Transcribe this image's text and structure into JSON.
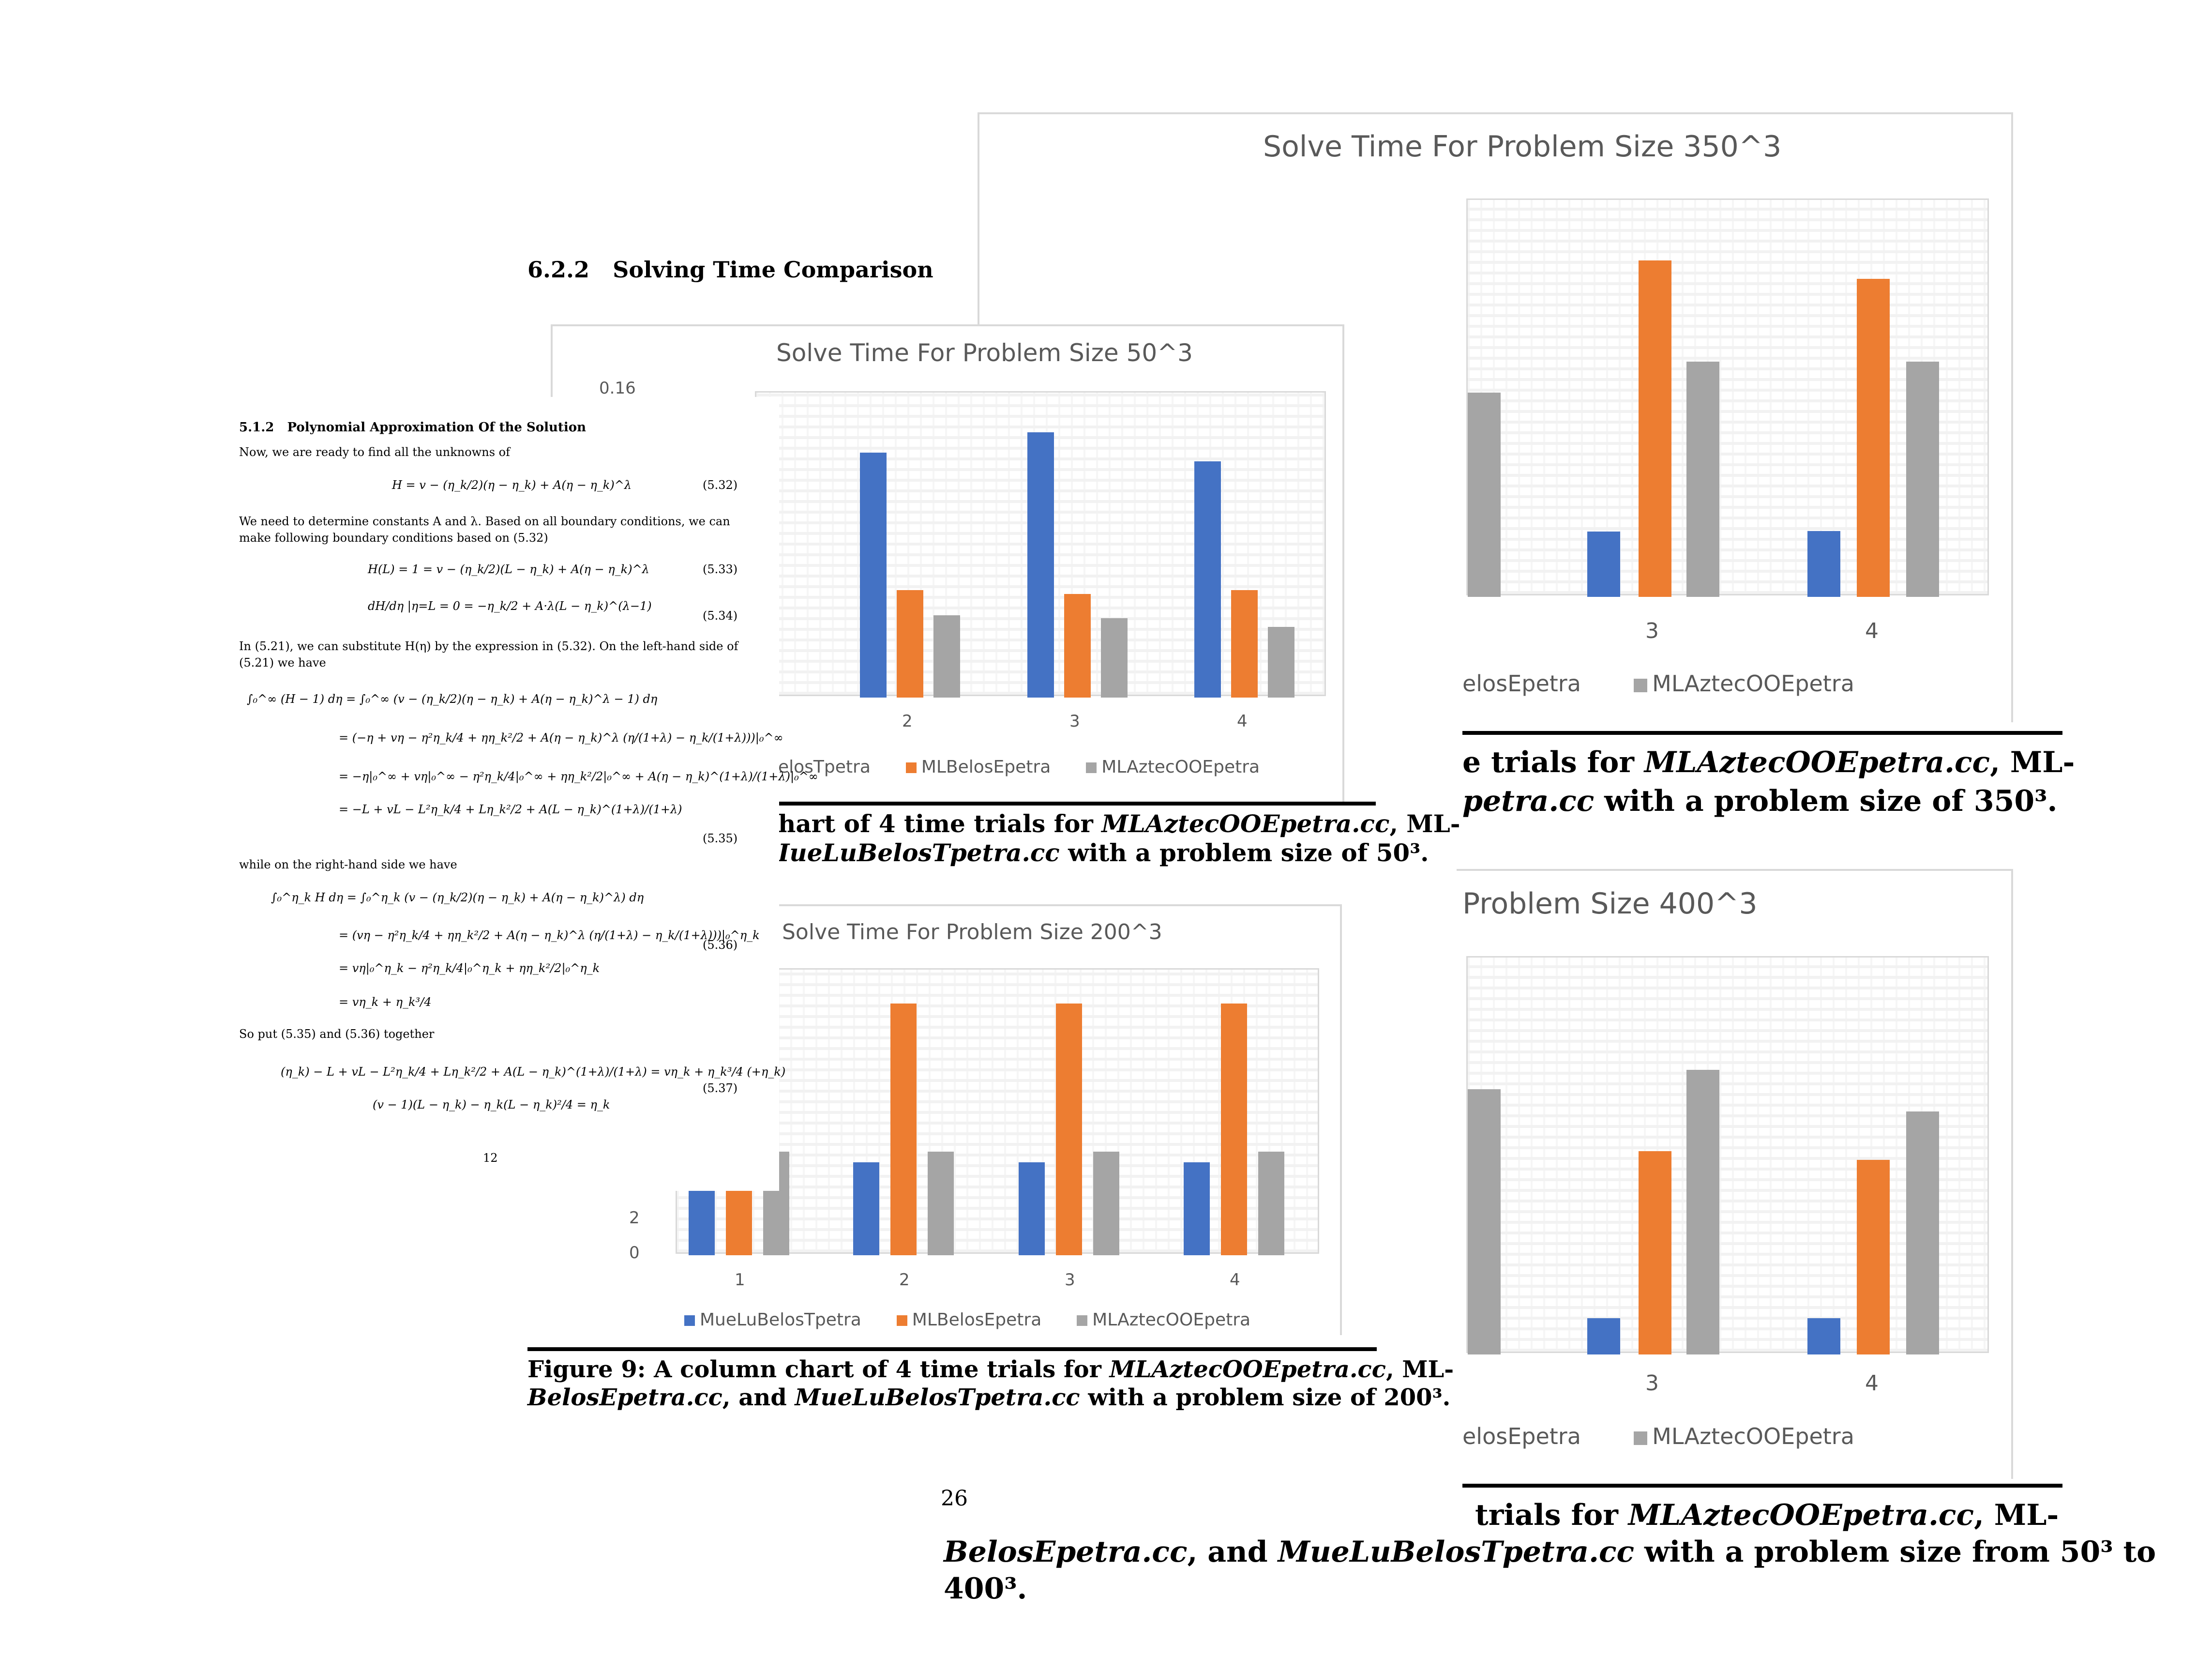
{
  "section_heading": {
    "number": "6.2.2",
    "title": "Solving Time Comparison"
  },
  "chart_50": {
    "title": "Solve Time For Problem Size 50^3",
    "partial_tick": "0.16",
    "categories": [
      "2",
      "3",
      "4"
    ],
    "legend": [
      "elosTpetra",
      "MLBelosEpetra",
      "MLAztecOOEpetra"
    ]
  },
  "caption_50": {
    "line1_pre": "hart of 4 time trials for ",
    "line1_em": "MLAztecOOEpetra.cc",
    "line1_post": ", ML-",
    "line2_em": "IueLuBelosTpetra.cc",
    "line2_post": " with a problem size of 50³."
  },
  "chart_200": {
    "title": "Solve Time For Problem Size 200^3",
    "y_ticks": [
      "2",
      "0"
    ],
    "categories": [
      "1",
      "2",
      "3",
      "4"
    ],
    "legend": [
      "MueLuBelosTpetra",
      "MLBelosEpetra",
      "MLAztecOOEpetra"
    ]
  },
  "caption_200": {
    "fig": "Figure 9:",
    "line1_pre": " A column chart of 4 time trials for ",
    "line1_em": "MLAztecOOEpetra.cc",
    "line1_post": ", ML-",
    "line2_em1": "BelosEpetra.cc",
    "line2_mid": ", and ",
    "line2_em2": "MueLuBelosTpetra.cc",
    "line2_post": " with a problem size of 200³."
  },
  "page_number_26": "26",
  "chart_350": {
    "title": "Solve Time For Problem Size 350^3",
    "categories": [
      "3",
      "4"
    ],
    "legend": [
      "elosEpetra",
      "MLAztecOOEpetra"
    ]
  },
  "caption_350": {
    "line1_pre": "e trials for ",
    "line1_em": "MLAztecOOEpetra.cc",
    "line1_post": ", ML-",
    "line2_em": "petra.cc",
    "line2_post": " with a problem size of 350³."
  },
  "chart_400": {
    "title": "Problem Size 400^3",
    "categories": [
      "3",
      "4"
    ],
    "legend": [
      "elosEpetra",
      "MLAztecOOEpetra"
    ]
  },
  "caption_400": {
    "line1_pre": "trials for ",
    "line1_em": "MLAztecOOEpetra.cc",
    "line1_post": ", ML-",
    "line2_em1": "BelosEpetra.cc",
    "line2_mid": ", and ",
    "line2_em2": "MueLuBelosTpetra.cc",
    "line2_post": " with a problem size from 50³ to",
    "line3": "400³."
  },
  "paper": {
    "heading_num": "5.1.2",
    "heading_title": "Polynomial Approximation Of the Solution",
    "intro": "Now, we are ready to find all the unknowns of",
    "eq_532": "H = v − (η_k/2)(η − η_k) + A(η − η_k)^λ",
    "tag_532": "(5.32)",
    "para2_l1": "We need to determine constants A and λ. Based on all boundary conditions, we can",
    "para2_l2": "make following boundary conditions based on (5.32)",
    "eq_533": "H(L) = 1 = v − (η_k/2)(L − η_k) + A(η − η_k)^λ",
    "tag_533": "(5.33)",
    "eq_534": "dH/dη |η=L = 0 = −η_k/2 + A·λ(L − η_k)^(λ−1)",
    "tag_534": "(5.34)",
    "para3_l1": "In (5.21), we can substitute H(η) by the expression in (5.32). On the left-hand side of",
    "para3_l2": "(5.21) we have",
    "eq_535_l1": "∫₀^∞ (H − 1) dη = ∫₀^∞ (v − (η_k/2)(η − η_k) + A(η − η_k)^λ − 1) dη",
    "eq_535_l2": "= (−η + vη − η²η_k/4 + ηη_k²/2 + A(η − η_k)^λ (η/(1+λ) − η_k/(1+λ)))|₀^∞",
    "eq_535_l3": "= −η|₀^∞ + vη|₀^∞ − η²η_k/4|₀^∞ + ηη_k²/2|₀^∞ + A(η − η_k)^(1+λ)/(1+λ)|₀^∞",
    "eq_535_l4": "= −L + vL − L²η_k/4 + Lη_k²/2 + A(L − η_k)^(1+λ)/(1+λ)",
    "tag_535": "(5.35)",
    "para4": "while on the right-hand side we have",
    "eq_536_l1": "∫₀^η_k H dη = ∫₀^η_k (v − (η_k/2)(η − η_k) + A(η − η_k)^λ) dη",
    "eq_536_l2": "= (vη − η²η_k/4 + ηη_k²/2 + A(η − η_k)^λ (η/(1+λ) − η_k/(1+λ)))|₀^η_k",
    "eq_536_l3": "= vη|₀^η_k − η²η_k/4|₀^η_k + ηη_k²/2|₀^η_k",
    "eq_536_l4": "= vη_k + η_k³/4",
    "tag_536": "(5.36)",
    "para5": "So put (5.35) and (5.36) together",
    "eq_537_l1": "(η_k) − L + vL − L²η_k/4 + Lη_k²/2 + A(L − η_k)^(1+λ)/(1+λ) = vη_k + η_k³/4 (+η_k)",
    "eq_537_l2": "(v − 1)(L − η_k) − η_k(L − η_k)²/4 = η_k",
    "tag_537": "(5.37)",
    "page_number": "12"
  }
}
